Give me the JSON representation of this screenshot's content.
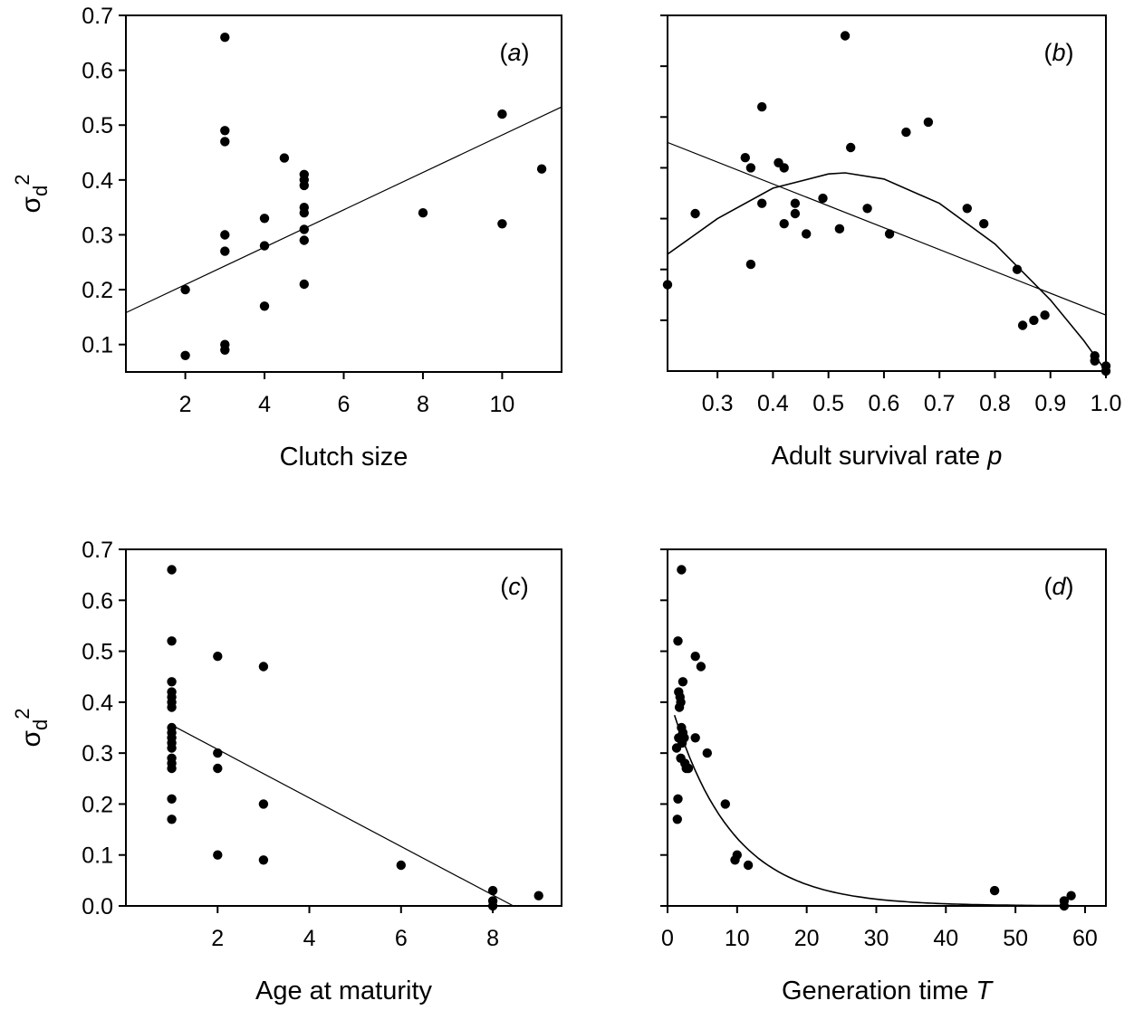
{
  "chart_data": [
    {
      "id": "a",
      "type": "scatter",
      "panel_label": "(a)",
      "xlabel": "Clutch size",
      "ylabel": "σ",
      "ylabel_sub": "d",
      "ylabel_sup": "2",
      "xlim": [
        0.5,
        11.5
      ],
      "ylim": [
        0.05,
        0.7
      ],
      "xticks": [
        2,
        4,
        6,
        8,
        10
      ],
      "yticks": [
        0.1,
        0.2,
        0.3,
        0.4,
        0.5,
        0.6,
        0.7
      ],
      "ytick_labels": [
        "0.1",
        "0.2",
        "0.3",
        "0.4",
        "0.5",
        "0.6",
        "0.7"
      ],
      "points": [
        [
          2,
          0.2
        ],
        [
          2,
          0.08
        ],
        [
          3,
          0.66
        ],
        [
          3,
          0.49
        ],
        [
          3,
          0.47
        ],
        [
          3,
          0.3
        ],
        [
          3,
          0.27
        ],
        [
          3,
          0.1
        ],
        [
          3,
          0.09
        ],
        [
          4,
          0.33
        ],
        [
          4,
          0.28
        ],
        [
          4,
          0.17
        ],
        [
          4.5,
          0.44
        ],
        [
          5,
          0.41
        ],
        [
          5,
          0.4
        ],
        [
          5,
          0.39
        ],
        [
          5,
          0.35
        ],
        [
          5,
          0.34
        ],
        [
          5,
          0.31
        ],
        [
          5,
          0.29
        ],
        [
          5,
          0.21
        ],
        [
          8,
          0.34
        ],
        [
          10,
          0.52
        ],
        [
          10,
          0.32
        ],
        [
          11,
          0.42
        ]
      ],
      "fit": {
        "kind": "linear",
        "x": [
          0.5,
          11.5
        ],
        "y": [
          0.158,
          0.533
        ]
      }
    },
    {
      "id": "b",
      "type": "scatter",
      "panel_label": "(b)",
      "xlabel": "Adult survival rate ",
      "xlabel_italic": "p",
      "xlim": [
        0.21,
        1.0
      ],
      "ylim": [
        0.0,
        0.7
      ],
      "xticks": [
        0.3,
        0.4,
        0.5,
        0.6,
        0.7,
        0.8,
        0.9,
        1.0
      ],
      "xtick_labels": [
        "0.3",
        "0.4",
        "0.5",
        "0.6",
        "0.7",
        "0.8",
        "0.9",
        "1.0"
      ],
      "yticks": [
        0.1,
        0.2,
        0.3,
        0.4,
        0.5,
        0.6,
        0.7
      ],
      "show_ytick_labels": false,
      "points": [
        [
          0.21,
          0.17
        ],
        [
          0.26,
          0.31
        ],
        [
          0.35,
          0.42
        ],
        [
          0.36,
          0.4
        ],
        [
          0.36,
          0.21
        ],
        [
          0.38,
          0.33
        ],
        [
          0.38,
          0.52
        ],
        [
          0.41,
          0.41
        ],
        [
          0.42,
          0.4
        ],
        [
          0.42,
          0.29
        ],
        [
          0.44,
          0.33
        ],
        [
          0.44,
          0.31
        ],
        [
          0.46,
          0.27
        ],
        [
          0.49,
          0.34
        ],
        [
          0.52,
          0.28
        ],
        [
          0.53,
          0.66
        ],
        [
          0.54,
          0.44
        ],
        [
          0.57,
          0.32
        ],
        [
          0.61,
          0.27
        ],
        [
          0.64,
          0.47
        ],
        [
          0.68,
          0.49
        ],
        [
          0.75,
          0.32
        ],
        [
          0.78,
          0.29
        ],
        [
          0.84,
          0.2
        ],
        [
          0.85,
          0.09
        ],
        [
          0.87,
          0.1
        ],
        [
          0.89,
          0.11
        ],
        [
          0.98,
          0.03
        ],
        [
          0.98,
          0.02
        ],
        [
          1.0,
          0.01
        ],
        [
          1.0,
          0.0
        ]
      ],
      "fits": [
        {
          "kind": "linear",
          "x": [
            0.21,
            1.0
          ],
          "y": [
            0.45,
            0.11
          ]
        },
        {
          "kind": "quadratic",
          "x": [
            0.21,
            0.3,
            0.4,
            0.5,
            0.53,
            0.6,
            0.7,
            0.8,
            0.9,
            0.96,
            1.0
          ],
          "y": [
            0.23,
            0.3,
            0.36,
            0.388,
            0.39,
            0.378,
            0.33,
            0.25,
            0.14,
            0.06,
            0.0
          ]
        }
      ]
    },
    {
      "id": "c",
      "type": "scatter",
      "panel_label": "(c)",
      "xlabel": "Age at maturity",
      "ylabel": "σ",
      "ylabel_sub": "d",
      "ylabel_sup": "2",
      "xlim": [
        0.0,
        9.5
      ],
      "ylim": [
        0.0,
        0.7
      ],
      "xticks": [
        2,
        4,
        6,
        8
      ],
      "yticks": [
        0.0,
        0.1,
        0.2,
        0.3,
        0.4,
        0.5,
        0.6,
        0.7
      ],
      "ytick_labels": [
        "0.0",
        "0.1",
        "0.2",
        "0.3",
        "0.4",
        "0.5",
        "0.6",
        "0.7"
      ],
      "points": [
        [
          1,
          0.66
        ],
        [
          1,
          0.52
        ],
        [
          1,
          0.44
        ],
        [
          1,
          0.42
        ],
        [
          1,
          0.41
        ],
        [
          1,
          0.4
        ],
        [
          1,
          0.39
        ],
        [
          1,
          0.35
        ],
        [
          1,
          0.34
        ],
        [
          1,
          0.33
        ],
        [
          1,
          0.32
        ],
        [
          1,
          0.31
        ],
        [
          1,
          0.29
        ],
        [
          1,
          0.28
        ],
        [
          1,
          0.27
        ],
        [
          1,
          0.21
        ],
        [
          1,
          0.17
        ],
        [
          2,
          0.49
        ],
        [
          2,
          0.3
        ],
        [
          2,
          0.27
        ],
        [
          2,
          0.1
        ],
        [
          3,
          0.47
        ],
        [
          3,
          0.2
        ],
        [
          3,
          0.09
        ],
        [
          6,
          0.08
        ],
        [
          8,
          0.03
        ],
        [
          8,
          0.01
        ],
        [
          8,
          0.0
        ],
        [
          9,
          0.02
        ]
      ],
      "fit": {
        "kind": "linear",
        "x": [
          1.0,
          8.45
        ],
        "y": [
          0.355,
          0.0
        ]
      }
    },
    {
      "id": "d",
      "type": "scatter",
      "panel_label": "(d)",
      "xlabel": "Generation time ",
      "xlabel_italic": "T",
      "xlim": [
        0,
        63
      ],
      "ylim": [
        0.0,
        0.7
      ],
      "xticks": [
        0,
        10,
        20,
        30,
        40,
        50,
        60
      ],
      "yticks": [
        0.0,
        0.1,
        0.2,
        0.3,
        0.4,
        0.5,
        0.6,
        0.7
      ],
      "show_ytick_labels": false,
      "points": [
        [
          2.0,
          0.66
        ],
        [
          1.5,
          0.52
        ],
        [
          4.0,
          0.49
        ],
        [
          4.8,
          0.47
        ],
        [
          2.2,
          0.44
        ],
        [
          1.6,
          0.42
        ],
        [
          1.8,
          0.41
        ],
        [
          1.9,
          0.4
        ],
        [
          1.7,
          0.39
        ],
        [
          2.0,
          0.35
        ],
        [
          2.2,
          0.34
        ],
        [
          1.6,
          0.33
        ],
        [
          2.4,
          0.33
        ],
        [
          4.0,
          0.33
        ],
        [
          2.1,
          0.32
        ],
        [
          1.3,
          0.31
        ],
        [
          1.9,
          0.29
        ],
        [
          2.5,
          0.28
        ],
        [
          2.7,
          0.27
        ],
        [
          3.0,
          0.27
        ],
        [
          5.7,
          0.3
        ],
        [
          1.5,
          0.21
        ],
        [
          1.4,
          0.17
        ],
        [
          8.3,
          0.2
        ],
        [
          10.0,
          0.1
        ],
        [
          9.7,
          0.09
        ],
        [
          11.6,
          0.08
        ],
        [
          47.0,
          0.03
        ],
        [
          57.0,
          0.01
        ],
        [
          57.0,
          0.0
        ],
        [
          58.0,
          0.02
        ]
      ],
      "fit": {
        "kind": "exponential",
        "a": 0.42,
        "b": 0.115,
        "x": [
          1,
          58
        ]
      }
    }
  ]
}
